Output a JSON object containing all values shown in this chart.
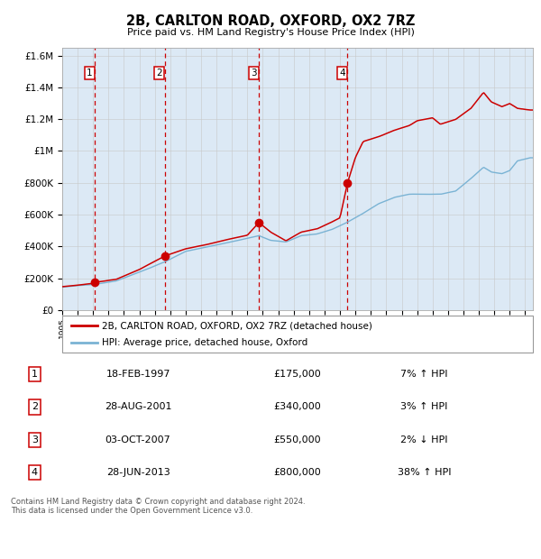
{
  "title": "2B, CARLTON ROAD, OXFORD, OX2 7RZ",
  "subtitle": "Price paid vs. HM Land Registry's House Price Index (HPI)",
  "purchases": [
    {
      "date": 1997.12,
      "price": 175000,
      "label": "1"
    },
    {
      "date": 2001.65,
      "price": 340000,
      "label": "2"
    },
    {
      "date": 2007.75,
      "price": 550000,
      "label": "3"
    },
    {
      "date": 2013.49,
      "price": 800000,
      "label": "4"
    }
  ],
  "purchase_annotations": [
    {
      "num": "1",
      "date": "18-FEB-1997",
      "price": "£175,000",
      "pct": "7% ↑ HPI"
    },
    {
      "num": "2",
      "date": "28-AUG-2001",
      "price": "£340,000",
      "pct": "3% ↑ HPI"
    },
    {
      "num": "3",
      "date": "03-OCT-2007",
      "price": "£550,000",
      "pct": "2% ↓ HPI"
    },
    {
      "num": "4",
      "date": "28-JUN-2013",
      "price": "£800,000",
      "pct": "38% ↑ HPI"
    }
  ],
  "legend_line1": "2B, CARLTON ROAD, OXFORD, OX2 7RZ (detached house)",
  "legend_line2": "HPI: Average price, detached house, Oxford",
  "footer": "Contains HM Land Registry data © Crown copyright and database right 2024.\nThis data is licensed under the Open Government Licence v3.0.",
  "hpi_color": "#7ab3d4",
  "price_color": "#cc0000",
  "background_color": "#dce9f5",
  "ylim": [
    0,
    1650000
  ],
  "xlim_start": 1995.0,
  "xlim_end": 2025.5
}
